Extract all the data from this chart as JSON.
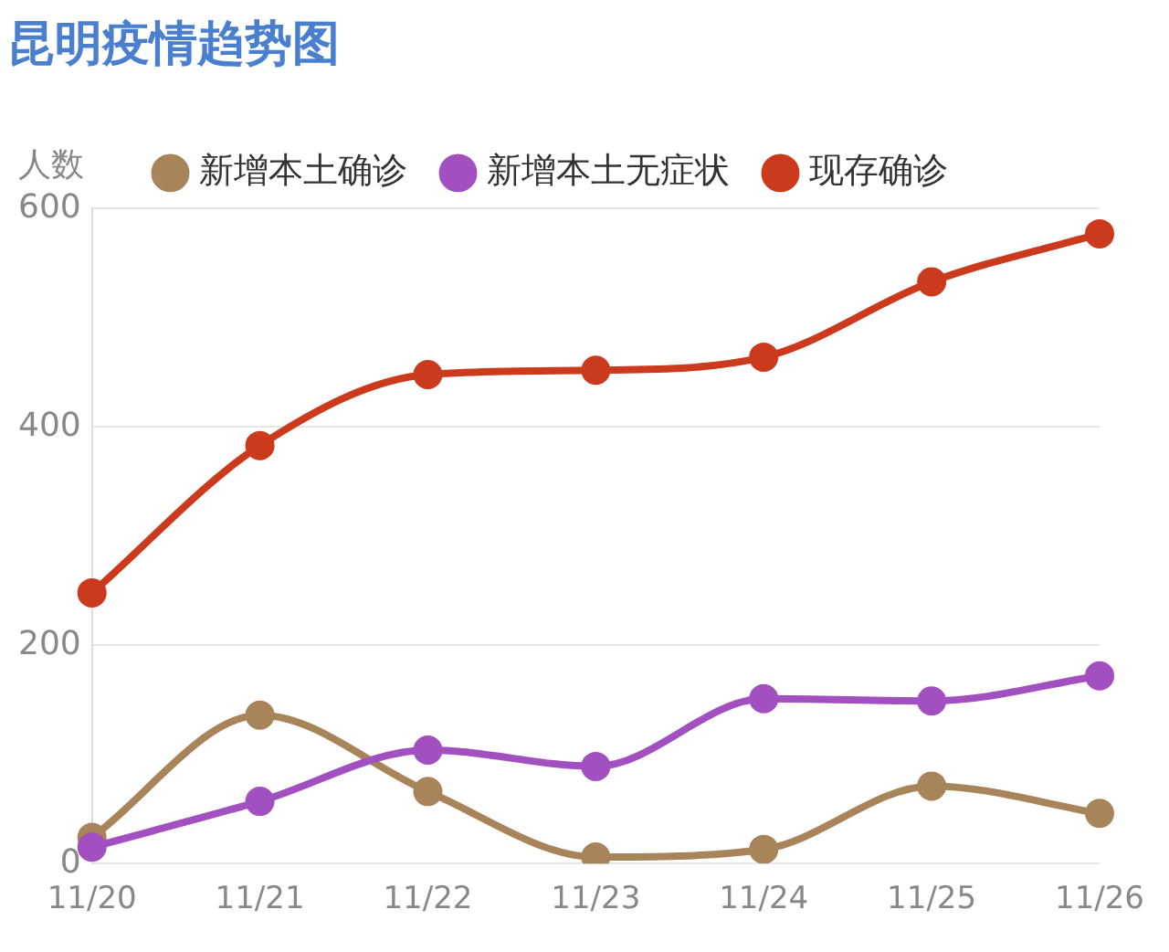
{
  "chart_data": {
    "type": "line",
    "title": "昆明疫情趋势图",
    "ylabel": "人数",
    "categories": [
      "11/20",
      "11/21",
      "11/22",
      "11/23",
      "11/24",
      "11/25",
      "11/26"
    ],
    "series": [
      {
        "name": "新增本土确诊",
        "color": "#a8845a",
        "values": [
          24,
          136,
          66,
          6,
          13,
          71,
          46
        ]
      },
      {
        "name": "新增本土无症状",
        "color": "#a24fc0",
        "values": [
          15,
          57,
          104,
          89,
          151,
          149,
          172
        ]
      },
      {
        "name": "现存确诊",
        "color": "#cc3a1e",
        "values": [
          248,
          383,
          448,
          452,
          464,
          533,
          577
        ]
      }
    ],
    "ylim": [
      0,
      600
    ],
    "yticks": [
      0,
      200,
      400,
      600
    ],
    "grid": "y",
    "legend": "top",
    "marker": "circle",
    "line_style": "solid"
  }
}
